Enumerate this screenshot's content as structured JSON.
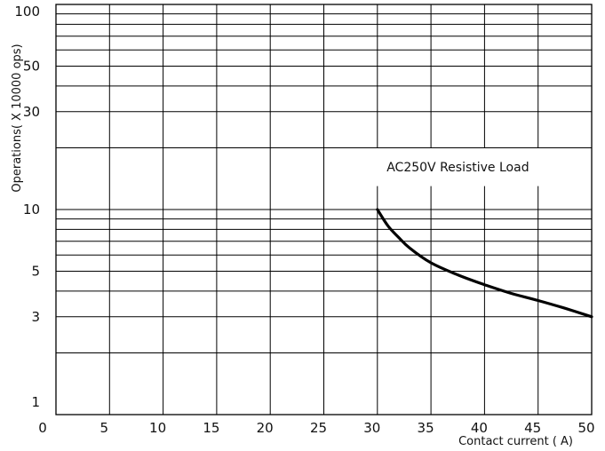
{
  "chart_data": {
    "type": "line",
    "xlabel": "Contact current ( A)",
    "ylabel": "Operations( X 10000 ops)",
    "xlim": [
      0,
      50
    ],
    "ylim": [
      1,
      100
    ],
    "yscale": "log",
    "grid": true,
    "x_ticks": [
      "0",
      "5",
      "10",
      "15",
      "20",
      "25",
      "30",
      "35",
      "40",
      "45",
      "50"
    ],
    "y_ticks": [
      "100",
      "50",
      "30",
      "10",
      "5",
      "3",
      "1"
    ],
    "annotation": "AC250V Resistive Load",
    "series": [
      {
        "x": [
          30,
          31,
          32,
          33,
          35,
          37.5,
          40,
          42.5,
          45,
          47.5,
          50
        ],
        "y": [
          10,
          8.3,
          7.3,
          6.5,
          5.5,
          4.8,
          4.3,
          3.9,
          3.6,
          3.3,
          3.0
        ]
      }
    ]
  }
}
